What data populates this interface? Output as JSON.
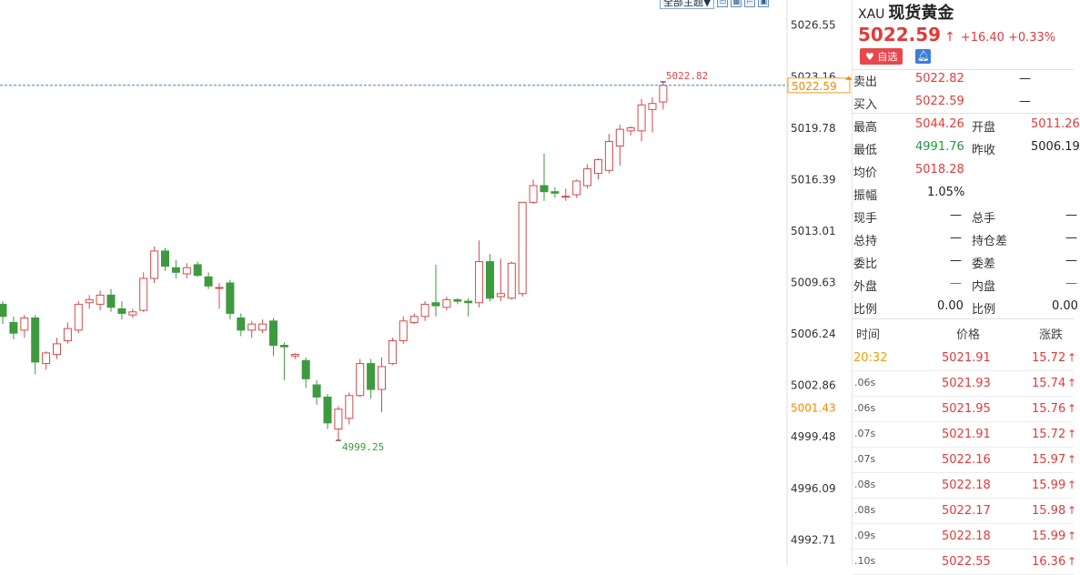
{
  "toolbar": {
    "theme_label": "全部主题▼"
  },
  "chart_data": {
    "type": "candlestick",
    "y_ticks": [
      "5026.55",
      "5023.16",
      "5019.78",
      "5016.39",
      "5013.01",
      "5009.63",
      "5006.24",
      "5002.86",
      "4999.48",
      "4996.09",
      "4992.71"
    ],
    "ylim": [
      4991.0,
      5028.2
    ],
    "current_price_label": "5022.59",
    "other_price_label": "5001.43",
    "high_annotation": "5022.82",
    "low_annotation": "4999.25",
    "candles": [
      {
        "o": 5008.2,
        "h": 5008.4,
        "l": 5006.9,
        "c": 5007.4
      },
      {
        "o": 5007.0,
        "h": 5007.4,
        "l": 5005.9,
        "c": 5006.3
      },
      {
        "o": 5006.5,
        "h": 5007.5,
        "l": 5006.0,
        "c": 5007.3
      },
      {
        "o": 5007.3,
        "h": 5007.5,
        "l": 5003.6,
        "c": 5004.4
      },
      {
        "o": 5004.3,
        "h": 5005.1,
        "l": 5003.9,
        "c": 5005.0
      },
      {
        "o": 5004.9,
        "h": 5006.0,
        "l": 5004.6,
        "c": 5005.6
      },
      {
        "o": 5005.8,
        "h": 5007.0,
        "l": 5005.6,
        "c": 5006.6
      },
      {
        "o": 5006.5,
        "h": 5008.4,
        "l": 5006.3,
        "c": 5008.2
      },
      {
        "o": 5008.3,
        "h": 5008.8,
        "l": 5007.9,
        "c": 5008.5
      },
      {
        "o": 5008.2,
        "h": 5009.1,
        "l": 5007.8,
        "c": 5008.8
      },
      {
        "o": 5008.8,
        "h": 5009.2,
        "l": 5007.7,
        "c": 5008.0
      },
      {
        "o": 5007.9,
        "h": 5008.4,
        "l": 5007.2,
        "c": 5007.6
      },
      {
        "o": 5007.5,
        "h": 5007.9,
        "l": 5007.3,
        "c": 5007.7
      },
      {
        "o": 5007.8,
        "h": 5010.3,
        "l": 5007.7,
        "c": 5009.9
      },
      {
        "o": 5009.9,
        "h": 5012.0,
        "l": 5009.6,
        "c": 5011.7
      },
      {
        "o": 5011.7,
        "h": 5011.9,
        "l": 5010.4,
        "c": 5010.7
      },
      {
        "o": 5010.6,
        "h": 5011.1,
        "l": 5009.9,
        "c": 5010.3
      },
      {
        "o": 5010.2,
        "h": 5010.9,
        "l": 5009.9,
        "c": 5010.6
      },
      {
        "o": 5010.8,
        "h": 5011.0,
        "l": 5010.0,
        "c": 5010.1
      },
      {
        "o": 5010.0,
        "h": 5010.3,
        "l": 5009.2,
        "c": 5009.4
      },
      {
        "o": 5009.3,
        "h": 5009.6,
        "l": 5007.9,
        "c": 5009.3
      },
      {
        "o": 5009.6,
        "h": 5009.8,
        "l": 5007.2,
        "c": 5007.6
      },
      {
        "o": 5007.3,
        "h": 5007.6,
        "l": 5006.1,
        "c": 5006.5
      },
      {
        "o": 5006.5,
        "h": 5007.1,
        "l": 5006.0,
        "c": 5006.9
      },
      {
        "o": 5006.5,
        "h": 5007.2,
        "l": 5006.3,
        "c": 5006.9
      },
      {
        "o": 5007.1,
        "h": 5007.3,
        "l": 5004.8,
        "c": 5005.5
      },
      {
        "o": 5005.5,
        "h": 5005.7,
        "l": 5003.2,
        "c": 5005.4
      },
      {
        "o": 5004.8,
        "h": 5005.0,
        "l": 5004.6,
        "c": 5004.9
      },
      {
        "o": 5004.5,
        "h": 5004.7,
        "l": 5002.7,
        "c": 5003.3
      },
      {
        "o": 5002.9,
        "h": 5003.2,
        "l": 5001.6,
        "c": 5002.1
      },
      {
        "o": 5002.1,
        "h": 5002.3,
        "l": 5000.0,
        "c": 5000.4
      },
      {
        "o": 5000.0,
        "h": 5001.5,
        "l": 4999.25,
        "c": 5001.3
      },
      {
        "o": 5000.7,
        "h": 5002.4,
        "l": 5000.3,
        "c": 5002.2
      },
      {
        "o": 5002.2,
        "h": 5004.6,
        "l": 5002.1,
        "c": 5004.3
      },
      {
        "o": 5004.3,
        "h": 5004.6,
        "l": 5002.0,
        "c": 5002.6
      },
      {
        "o": 5002.6,
        "h": 5004.7,
        "l": 5001.1,
        "c": 5004.1
      },
      {
        "o": 5004.3,
        "h": 5006.0,
        "l": 5004.2,
        "c": 5005.8
      },
      {
        "o": 5005.8,
        "h": 5007.4,
        "l": 5005.6,
        "c": 5007.1
      },
      {
        "o": 5007.0,
        "h": 5007.6,
        "l": 5006.9,
        "c": 5007.4
      },
      {
        "o": 5007.4,
        "h": 5008.4,
        "l": 5007.1,
        "c": 5008.2
      },
      {
        "o": 5008.3,
        "h": 5010.8,
        "l": 5007.4,
        "c": 5008.1
      },
      {
        "o": 5008.0,
        "h": 5008.7,
        "l": 5007.8,
        "c": 5008.5
      },
      {
        "o": 5008.5,
        "h": 5008.6,
        "l": 5008.2,
        "c": 5008.4
      },
      {
        "o": 5008.4,
        "h": 5008.6,
        "l": 5007.4,
        "c": 5008.3
      },
      {
        "o": 5008.3,
        "h": 5012.4,
        "l": 5008.0,
        "c": 5011.0
      },
      {
        "o": 5011.0,
        "h": 5011.5,
        "l": 5008.4,
        "c": 5008.6
      },
      {
        "o": 5008.7,
        "h": 5011.2,
        "l": 5008.4,
        "c": 5008.9
      },
      {
        "o": 5008.6,
        "h": 5011.0,
        "l": 5008.5,
        "c": 5010.9
      },
      {
        "o": 5008.9,
        "h": 5014.9,
        "l": 5008.7,
        "c": 5014.9
      },
      {
        "o": 5014.9,
        "h": 5016.4,
        "l": 5014.8,
        "c": 5016.0
      },
      {
        "o": 5016.0,
        "h": 5018.1,
        "l": 5015.0,
        "c": 5015.6
      },
      {
        "o": 5015.6,
        "h": 5015.9,
        "l": 5015.2,
        "c": 5015.5
      },
      {
        "o": 5015.3,
        "h": 5015.8,
        "l": 5015.0,
        "c": 5015.3
      },
      {
        "o": 5015.4,
        "h": 5016.4,
        "l": 5015.2,
        "c": 5016.3
      },
      {
        "o": 5016.0,
        "h": 5017.4,
        "l": 5015.8,
        "c": 5017.1
      },
      {
        "o": 5016.8,
        "h": 5017.8,
        "l": 5016.4,
        "c": 5017.7
      },
      {
        "o": 5017.0,
        "h": 5019.4,
        "l": 5016.8,
        "c": 5018.9
      },
      {
        "o": 5018.6,
        "h": 5020.0,
        "l": 5017.3,
        "c": 5019.7
      },
      {
        "o": 5019.6,
        "h": 5019.9,
        "l": 5019.3,
        "c": 5019.8
      },
      {
        "o": 5019.6,
        "h": 5021.7,
        "l": 5018.9,
        "c": 5021.3
      },
      {
        "o": 5021.0,
        "h": 5021.8,
        "l": 5019.5,
        "c": 5021.4
      },
      {
        "o": 5021.5,
        "h": 5022.82,
        "l": 5021.0,
        "c": 5022.59
      }
    ]
  },
  "panel": {
    "symbol": "XAU",
    "name": "现货黄金",
    "price": "5022.59",
    "arrow": "↑",
    "change": "+16.40",
    "change_pct": "+0.33%",
    "fav_label": "♥ 自选",
    "bell_icon": "bell-icon",
    "quotes": {
      "sell_label": "卖出",
      "sell_value": "5022.82",
      "sell_extra": "—",
      "buy_label": "买入",
      "buy_value": "5022.59",
      "buy_extra": "—",
      "high_label": "最高",
      "high_value": "5044.26",
      "open_label": "开盘",
      "open_value": "5011.26",
      "low_label": "最低",
      "low_value": "4991.76",
      "prev_label": "昨收",
      "prev_value": "5006.19",
      "avg_label": "均价",
      "avg_value": "5018.28",
      "amp_label": "振幅",
      "amp_value": "1.05%",
      "cur_hand_label": "现手",
      "cur_hand_value": "—",
      "total_hand_label": "总手",
      "total_hand_value": "—",
      "total_hold_label": "总持",
      "total_hold_value": "—",
      "hold_diff_label": "持仓差",
      "hold_diff_value": "—",
      "bid_ratio_label": "委比",
      "bid_ratio_value": "—",
      "bid_diff_label": "委差",
      "bid_diff_value": "—",
      "outer_label": "外盘",
      "outer_value": "—",
      "inner_label": "内盘",
      "inner_value": "—",
      "ratio_label": "比例",
      "ratio_value": "0.00",
      "ratio2_label": "比例",
      "ratio2_value": "0.00"
    },
    "trades_header": {
      "time": "时间",
      "price": "价格",
      "change": "涨跌"
    },
    "trades": [
      {
        "time": "20:32",
        "price": "5021.91",
        "change": "15.72",
        "arrow": "↑"
      },
      {
        "time": ".06s",
        "price": "5021.93",
        "change": "15.74",
        "arrow": "↑"
      },
      {
        "time": ".06s",
        "price": "5021.95",
        "change": "15.76",
        "arrow": "↑"
      },
      {
        "time": ".07s",
        "price": "5021.91",
        "change": "15.72",
        "arrow": "↑"
      },
      {
        "time": ".07s",
        "price": "5022.16",
        "change": "15.97",
        "arrow": "↑"
      },
      {
        "time": ".08s",
        "price": "5022.18",
        "change": "15.99",
        "arrow": "↑"
      },
      {
        "time": ".08s",
        "price": "5022.17",
        "change": "15.98",
        "arrow": "↑"
      },
      {
        "time": ".09s",
        "price": "5022.18",
        "change": "15.99",
        "arrow": "↑"
      },
      {
        "time": ".10s",
        "price": "5022.55",
        "change": "16.36",
        "arrow": "↑"
      }
    ]
  }
}
